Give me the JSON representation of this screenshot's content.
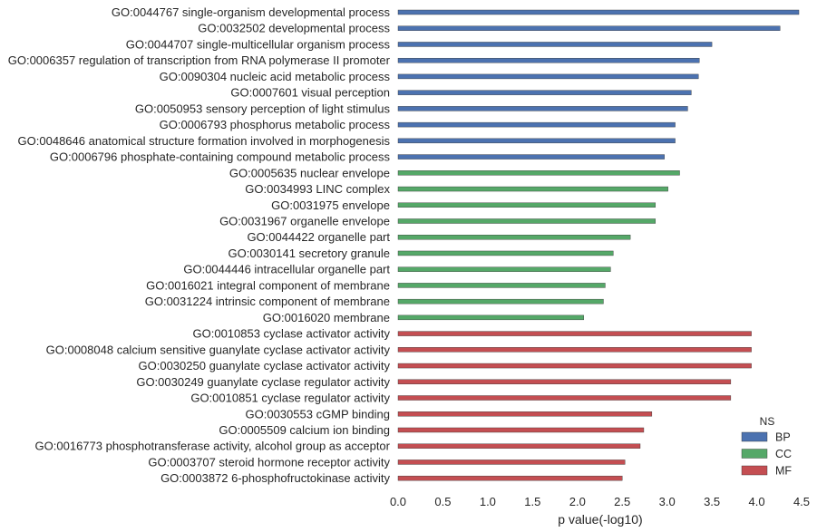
{
  "chart_data": {
    "type": "bar",
    "orientation": "horizontal",
    "xlabel": "p value(-log10)",
    "ylabel": "",
    "xlim": [
      0,
      4.5
    ],
    "xticks": [
      "0.0",
      "0.5",
      "1.0",
      "1.5",
      "2.0",
      "2.5",
      "3.0",
      "3.5",
      "4.0",
      "4.5"
    ],
    "grid": false,
    "legend": {
      "title": "NS",
      "placement": "lower-right",
      "entries": [
        {
          "name": "BP",
          "color": "#4c72b0"
        },
        {
          "name": "CC",
          "color": "#55a868"
        },
        {
          "name": "MF",
          "color": "#c44e52"
        }
      ]
    },
    "bars": [
      {
        "label": "GO:0044767 single-organism developmental process",
        "value": 4.47,
        "ns": "BP"
      },
      {
        "label": "GO:0032502 developmental process",
        "value": 4.26,
        "ns": "BP"
      },
      {
        "label": "GO:0044707 single-multicellular organism process",
        "value": 3.5,
        "ns": "BP"
      },
      {
        "label": "GO:0006357 regulation of transcription from RNA polymerase II promoter",
        "value": 3.36,
        "ns": "BP"
      },
      {
        "label": "GO:0090304 nucleic acid metabolic process",
        "value": 3.35,
        "ns": "BP"
      },
      {
        "label": "GO:0007601 visual perception",
        "value": 3.27,
        "ns": "BP"
      },
      {
        "label": "GO:0050953 sensory perception of light stimulus",
        "value": 3.23,
        "ns": "BP"
      },
      {
        "label": "GO:0006793 phosphorus metabolic process",
        "value": 3.09,
        "ns": "BP"
      },
      {
        "label": "GO:0048646 anatomical structure formation involved in morphogenesis",
        "value": 3.09,
        "ns": "BP"
      },
      {
        "label": "GO:0006796 phosphate-containing compound metabolic process",
        "value": 2.97,
        "ns": "BP"
      },
      {
        "label": "GO:0005635 nuclear envelope",
        "value": 3.14,
        "ns": "CC"
      },
      {
        "label": "GO:0034993 LINC complex",
        "value": 3.01,
        "ns": "CC"
      },
      {
        "label": "GO:0031975 envelope",
        "value": 2.87,
        "ns": "CC"
      },
      {
        "label": "GO:0031967 organelle envelope",
        "value": 2.87,
        "ns": "CC"
      },
      {
        "label": "GO:0044422 organelle part",
        "value": 2.59,
        "ns": "CC"
      },
      {
        "label": "GO:0030141 secretory granule",
        "value": 2.4,
        "ns": "CC"
      },
      {
        "label": "GO:0044446 intracellular organelle part",
        "value": 2.37,
        "ns": "CC"
      },
      {
        "label": "GO:0016021 integral component of membrane",
        "value": 2.31,
        "ns": "CC"
      },
      {
        "label": "GO:0031224 intrinsic component of membrane",
        "value": 2.29,
        "ns": "CC"
      },
      {
        "label": "GO:0016020 membrane",
        "value": 2.07,
        "ns": "CC"
      },
      {
        "label": "GO:0010853 cyclase activator activity",
        "value": 3.94,
        "ns": "MF"
      },
      {
        "label": "GO:0008048 calcium sensitive guanylate cyclase activator activity",
        "value": 3.94,
        "ns": "MF"
      },
      {
        "label": "GO:0030250 guanylate cyclase activator activity",
        "value": 3.94,
        "ns": "MF"
      },
      {
        "label": "GO:0030249 guanylate cyclase regulator activity",
        "value": 3.71,
        "ns": "MF"
      },
      {
        "label": "GO:0010851 cyclase regulator activity",
        "value": 3.71,
        "ns": "MF"
      },
      {
        "label": "GO:0030553 cGMP binding",
        "value": 2.83,
        "ns": "MF"
      },
      {
        "label": "GO:0005509 calcium ion binding",
        "value": 2.74,
        "ns": "MF"
      },
      {
        "label": "GO:0016773 phosphotransferase activity, alcohol group as acceptor",
        "value": 2.7,
        "ns": "MF"
      },
      {
        "label": "GO:0003707 steroid hormone receptor activity",
        "value": 2.53,
        "ns": "MF"
      },
      {
        "label": "GO:0003872 6-phosphofructokinase activity",
        "value": 2.5,
        "ns": "MF"
      }
    ]
  }
}
